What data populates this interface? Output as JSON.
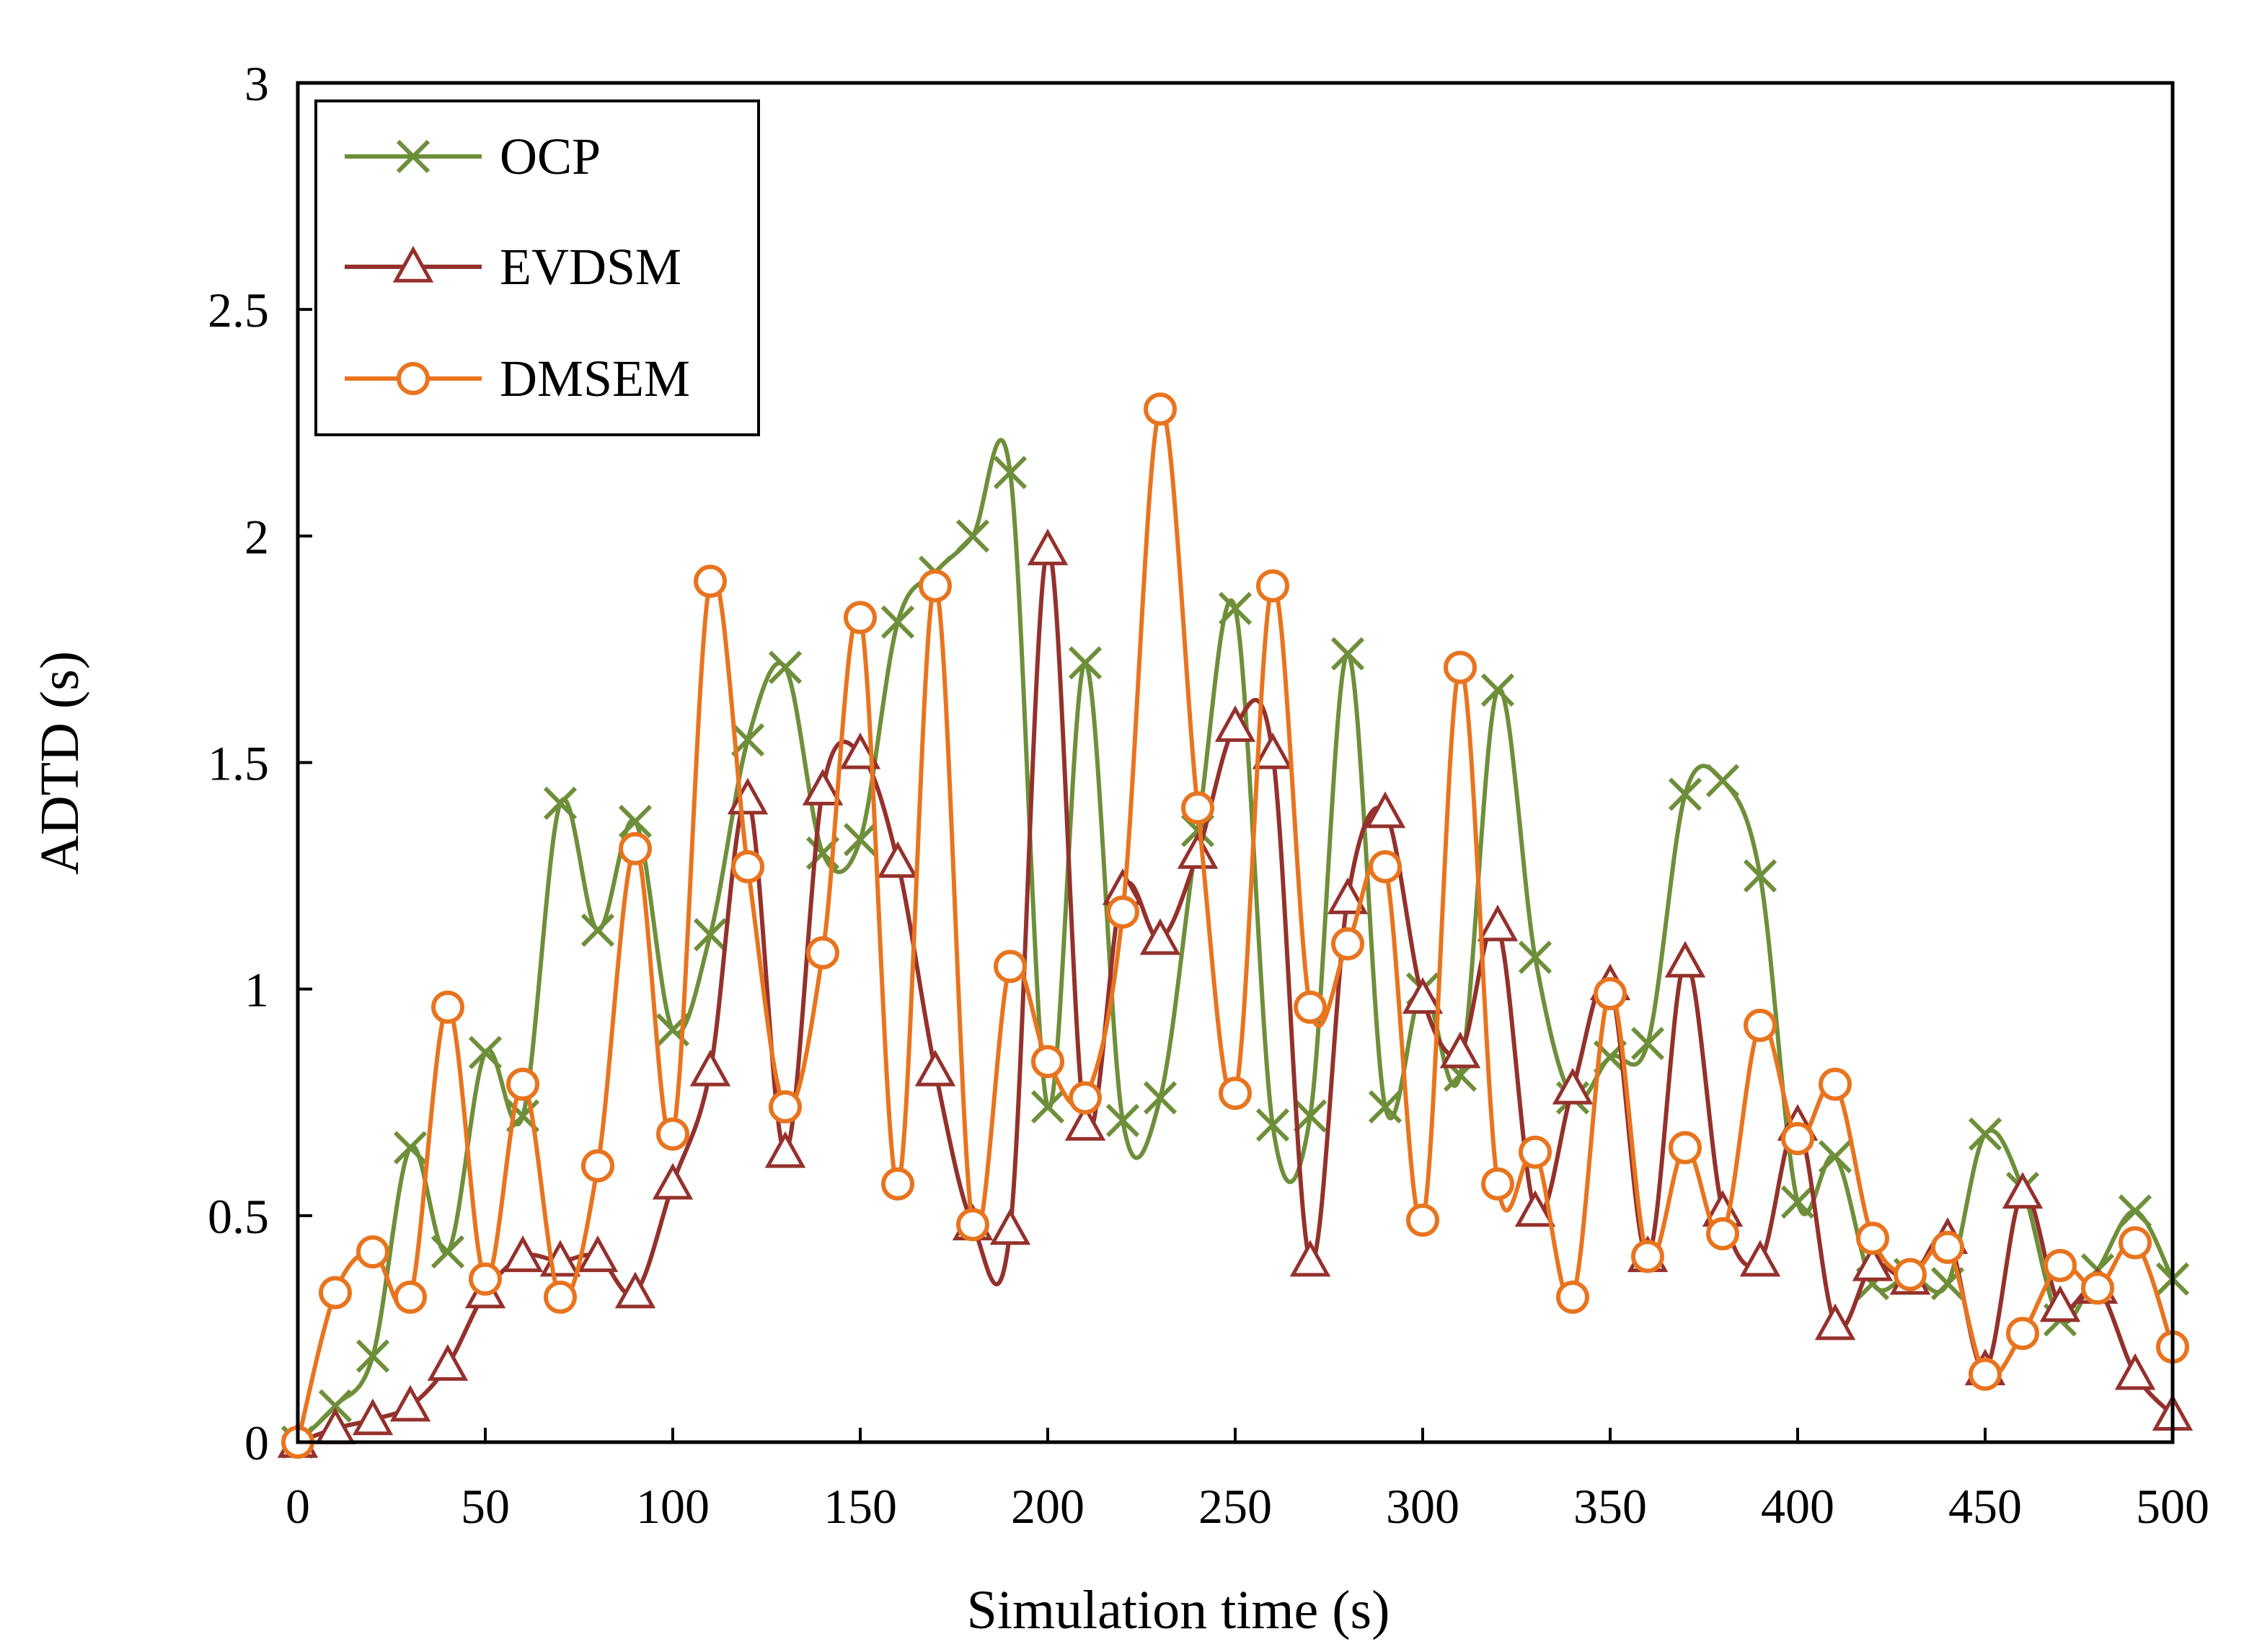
{
  "chart_data": {
    "type": "line",
    "title": "",
    "xlabel": "Simulation time (s)",
    "ylabel": "ADTD (s)",
    "xlim": [
      0,
      500
    ],
    "ylim": [
      0,
      3
    ],
    "xticks": [
      0,
      50,
      100,
      150,
      200,
      250,
      300,
      350,
      400,
      450,
      500
    ],
    "xtick_labels": [
      "0",
      "50",
      "100",
      "150",
      "200",
      "250",
      "300",
      "350",
      "400",
      "450",
      "500"
    ],
    "yticks": [
      0,
      0.5,
      1,
      1.5,
      2,
      2.5,
      3
    ],
    "ytick_labels": [
      "0",
      "0.5",
      "1",
      "1.5",
      "2",
      "2.5",
      "3"
    ],
    "grid": false,
    "legend_position": "top-left",
    "x": [
      0,
      10,
      20,
      30,
      40,
      50,
      60,
      70,
      80,
      90,
      100,
      110,
      120,
      130,
      140,
      150,
      160,
      170,
      180,
      190,
      200,
      210,
      220,
      230,
      240,
      250,
      260,
      270,
      280,
      290,
      300,
      310,
      320,
      330,
      340,
      350,
      360,
      370,
      380,
      390,
      400,
      410,
      420,
      430,
      440,
      450,
      460,
      470,
      480,
      490,
      500
    ],
    "series": [
      {
        "name": "OCP",
        "marker": "x",
        "color": "#6e8f3a",
        "values": [
          0,
          0.08,
          0.19,
          0.65,
          0.42,
          0.86,
          0.72,
          1.41,
          1.13,
          1.37,
          0.91,
          1.12,
          1.55,
          1.71,
          1.3,
          1.33,
          1.81,
          1.92,
          2,
          2.14,
          0.74,
          1.72,
          0.71,
          0.76,
          1.35,
          1.84,
          0.7,
          0.72,
          1.74,
          0.74,
          1,
          0.81,
          1.66,
          1.07,
          0.76,
          0.85,
          0.88,
          1.43,
          1.46,
          1.25,
          0.53,
          0.63,
          0.35,
          0.37,
          0.35,
          0.68,
          0.56,
          0.27,
          0.38,
          0.51,
          0.36
        ]
      },
      {
        "name": "EVDSM",
        "marker": "triangle",
        "color": "#94312c",
        "values": [
          0,
          0.03,
          0.05,
          0.08,
          0.17,
          0.33,
          0.41,
          0.4,
          0.41,
          0.33,
          0.57,
          0.82,
          1.42,
          0.64,
          1.44,
          1.52,
          1.28,
          0.82,
          0.48,
          0.47,
          1.97,
          0.7,
          1.22,
          1.11,
          1.3,
          1.58,
          1.52,
          0.4,
          1.2,
          1.39,
          0.98,
          0.86,
          1.14,
          0.51,
          0.78,
          1.01,
          0.41,
          1.06,
          0.51,
          0.4,
          0.7,
          0.26,
          0.39,
          0.36,
          0.45,
          0.16,
          0.55,
          0.3,
          0.34,
          0.15,
          0.06
        ]
      },
      {
        "name": "DMSEM",
        "marker": "circle",
        "color": "#e8741e",
        "values": [
          0,
          0.33,
          0.42,
          0.32,
          0.96,
          0.36,
          0.79,
          0.32,
          0.61,
          1.31,
          0.68,
          1.9,
          1.27,
          0.74,
          1.08,
          1.82,
          0.57,
          1.89,
          0.48,
          1.05,
          0.84,
          0.76,
          1.17,
          2.28,
          1.4,
          0.77,
          1.89,
          0.96,
          1.1,
          1.27,
          0.49,
          1.71,
          0.57,
          0.64,
          0.32,
          0.99,
          0.41,
          0.65,
          0.46,
          0.92,
          0.67,
          0.79,
          0.45,
          0.37,
          0.43,
          0.15,
          0.24,
          0.39,
          0.34,
          0.44,
          0.21
        ]
      }
    ]
  }
}
